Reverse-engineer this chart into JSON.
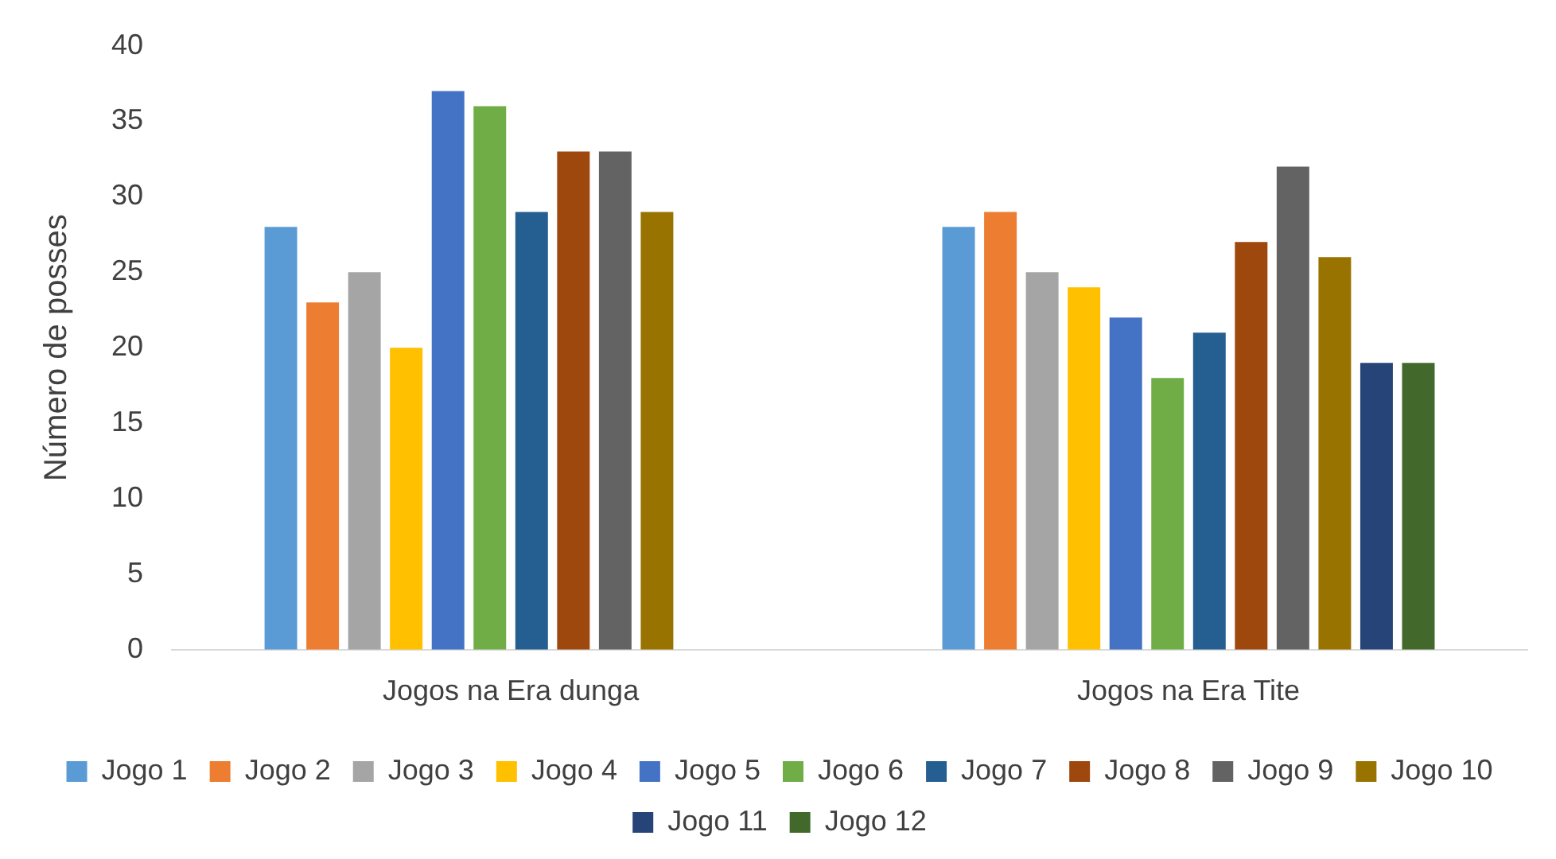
{
  "chart_data": {
    "type": "bar",
    "ylabel": "Número de posses",
    "categories": [
      "Jogos na Era dunga",
      "Jogos na Era Tite"
    ],
    "series": [
      {
        "name": "Jogo 1",
        "color": "#5b9bd5",
        "values": [
          28,
          28
        ]
      },
      {
        "name": "Jogo 2",
        "color": "#ed7d31",
        "values": [
          23,
          29
        ]
      },
      {
        "name": "Jogo 3",
        "color": "#a5a5a5",
        "values": [
          25,
          25
        ]
      },
      {
        "name": "Jogo 4",
        "color": "#ffc000",
        "values": [
          20,
          24
        ]
      },
      {
        "name": "Jogo 5",
        "color": "#4472c4",
        "values": [
          37,
          22
        ]
      },
      {
        "name": "Jogo 6",
        "color": "#70ad47",
        "values": [
          36,
          18
        ]
      },
      {
        "name": "Jogo 7",
        "color": "#255e91",
        "values": [
          29,
          21
        ]
      },
      {
        "name": "Jogo 8",
        "color": "#9e480e",
        "values": [
          33,
          27
        ]
      },
      {
        "name": "Jogo 9",
        "color": "#636363",
        "values": [
          33,
          32
        ]
      },
      {
        "name": "Jogo 10",
        "color": "#997300",
        "values": [
          29,
          26
        ]
      },
      {
        "name": "Jogo 11",
        "color": "#264478",
        "values": [
          null,
          19
        ]
      },
      {
        "name": "Jogo 12",
        "color": "#43682b",
        "values": [
          null,
          19
        ]
      }
    ],
    "ylim": [
      0,
      40
    ],
    "yticks": [
      0,
      5,
      10,
      15,
      20,
      25,
      30,
      35,
      40
    ],
    "grid": false,
    "legend": "bottom"
  }
}
